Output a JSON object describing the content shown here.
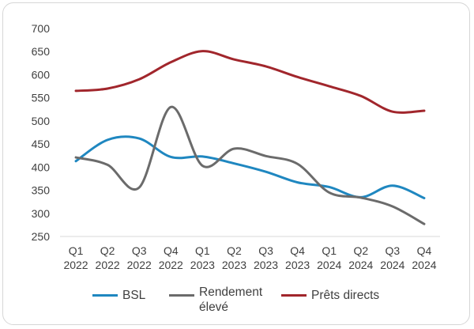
{
  "chart_data": {
    "type": "line",
    "categories": [
      [
        "Q1",
        "2022"
      ],
      [
        "Q2",
        "2022"
      ],
      [
        "Q3",
        "2022"
      ],
      [
        "Q4",
        "2022"
      ],
      [
        "Q1",
        "2023"
      ],
      [
        "Q2",
        "2023"
      ],
      [
        "Q3",
        "2023"
      ],
      [
        "Q4",
        "2023"
      ],
      [
        "Q1",
        "2024"
      ],
      [
        "Q2",
        "2024"
      ],
      [
        "Q3",
        "2024"
      ],
      [
        "Q4",
        "2024"
      ]
    ],
    "ylim": [
      250,
      700
    ],
    "yticks": [
      250,
      300,
      350,
      400,
      450,
      500,
      550,
      600,
      650,
      700
    ],
    "grid": false,
    "legend_position": "bottom",
    "series": [
      {
        "name": "BSL",
        "color": "#1f87c0",
        "values": [
          413,
          459,
          462,
          422,
          423,
          408,
          390,
          367,
          357,
          335,
          360,
          333
        ]
      },
      {
        "name": "Rendement élevé",
        "name_lines": [
          "Rendement",
          "élevé"
        ],
        "color": "#6b6b6b",
        "values": [
          421,
          405,
          356,
          530,
          403,
          440,
          424,
          407,
          345,
          334,
          315,
          277
        ]
      },
      {
        "name": "Prêts directs",
        "color": "#a1262c",
        "values": [
          565,
          570,
          590,
          627,
          651,
          633,
          618,
          595,
          575,
          554,
          520,
          522
        ]
      }
    ]
  }
}
